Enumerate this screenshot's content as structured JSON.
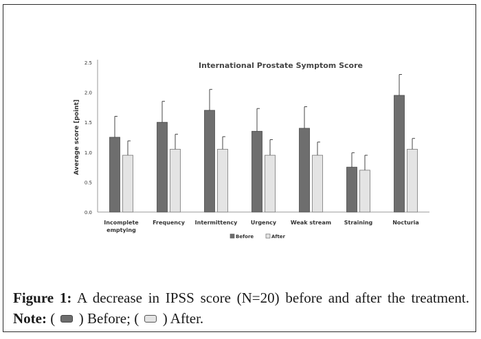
{
  "chart_data": {
    "type": "bar",
    "title": "International Prostate Symptom Score",
    "ylabel": "Average score [point]",
    "xlabel": "",
    "ylim": [
      0,
      2.5
    ],
    "yticks": [
      "0.0",
      "0.5",
      "1.0",
      "1.5",
      "2.0",
      "2.5"
    ],
    "categories": [
      [
        "Incomplete",
        "emptying"
      ],
      [
        "Frequency"
      ],
      [
        "Intermittency"
      ],
      [
        "Urgency"
      ],
      [
        "Weak stream"
      ],
      [
        "Straining"
      ],
      [
        "Nocturia"
      ]
    ],
    "series": [
      {
        "name": "Before",
        "color": "#6e6e6e",
        "values": [
          1.25,
          1.5,
          1.7,
          1.35,
          1.4,
          0.75,
          1.95
        ],
        "errors": [
          0.35,
          0.35,
          0.35,
          0.38,
          0.36,
          0.24,
          0.35
        ]
      },
      {
        "name": "After",
        "color": "#e4e4e4",
        "values": [
          0.95,
          1.05,
          1.05,
          0.95,
          0.95,
          0.7,
          1.05
        ],
        "errors": [
          0.24,
          0.25,
          0.21,
          0.26,
          0.22,
          0.25,
          0.18
        ]
      }
    ],
    "legend": "bottom"
  },
  "caption": {
    "label": "Figure 1:",
    "text": " A decrease in IPSS score (N=20) before and after the treatment. ",
    "note_label": "Note:",
    "open1": " ( ",
    "before_text": " ) Before; ( ",
    "after_text": " ) After."
  }
}
